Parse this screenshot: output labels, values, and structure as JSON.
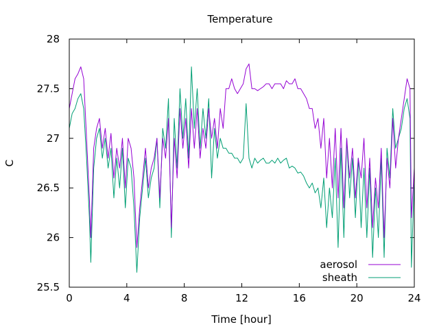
{
  "chart_data": {
    "type": "line",
    "title": "Temperature",
    "xlabel": "Time [hour]",
    "ylabel": "C",
    "xlim": [
      0,
      24
    ],
    "ylim": [
      25.5,
      28
    ],
    "x_ticks": [
      0,
      4,
      8,
      12,
      16,
      20,
      24
    ],
    "y_ticks": [
      25.5,
      26,
      26.5,
      27,
      27.5,
      28
    ],
    "y_tick_labels": [
      "25.5",
      "26",
      "26.5",
      "27",
      "27.5",
      "28"
    ],
    "grid": false,
    "legend_position": "bottom-right",
    "series": [
      {
        "name": "aerosol",
        "color": "#9400d3",
        "x": [
          0,
          0.2,
          0.4,
          0.6,
          0.8,
          1.0,
          1.2,
          1.4,
          1.5,
          1.7,
          1.9,
          2.1,
          2.3,
          2.5,
          2.7,
          2.9,
          3.1,
          3.3,
          3.5,
          3.7,
          3.9,
          4.1,
          4.3,
          4.5,
          4.7,
          4.9,
          5.1,
          5.3,
          5.5,
          5.7,
          5.9,
          6.1,
          6.3,
          6.5,
          6.7,
          6.9,
          7.1,
          7.3,
          7.5,
          7.7,
          7.9,
          8.1,
          8.3,
          8.5,
          8.7,
          8.9,
          9.1,
          9.3,
          9.5,
          9.7,
          9.9,
          10.1,
          10.3,
          10.5,
          10.7,
          10.9,
          11.1,
          11.3,
          11.5,
          11.7,
          11.9,
          12.1,
          12.3,
          12.5,
          12.7,
          12.9,
          13.1,
          13.3,
          13.5,
          13.7,
          13.9,
          14.1,
          14.3,
          14.5,
          14.7,
          14.9,
          15.1,
          15.3,
          15.5,
          15.7,
          15.9,
          16.1,
          16.3,
          16.5,
          16.7,
          16.9,
          17.1,
          17.3,
          17.5,
          17.7,
          17.9,
          18.1,
          18.3,
          18.5,
          18.7,
          18.9,
          19.1,
          19.3,
          19.5,
          19.7,
          19.9,
          20.1,
          20.3,
          20.5,
          20.7,
          20.9,
          21.1,
          21.3,
          21.5,
          21.7,
          21.9,
          22.1,
          22.3,
          22.5,
          22.7,
          22.9,
          23.1,
          23.3,
          23.5,
          23.7,
          23.8,
          24.0
        ],
        "values": [
          27.3,
          27.45,
          27.6,
          27.65,
          27.72,
          27.6,
          27.0,
          26.4,
          26.0,
          26.9,
          27.1,
          27.2,
          26.9,
          27.1,
          26.8,
          27.05,
          26.6,
          26.9,
          26.7,
          27.0,
          26.5,
          27.0,
          26.9,
          26.6,
          25.9,
          26.3,
          26.6,
          26.9,
          26.5,
          26.7,
          26.8,
          27.0,
          26.4,
          27.0,
          26.8,
          27.2,
          26.1,
          27.0,
          26.6,
          27.3,
          26.9,
          27.2,
          26.7,
          27.3,
          26.9,
          27.3,
          26.8,
          27.1,
          26.9,
          27.3,
          27.0,
          27.2,
          26.9,
          27.3,
          27.1,
          27.5,
          27.5,
          27.6,
          27.5,
          27.45,
          27.5,
          27.55,
          27.7,
          27.75,
          27.5,
          27.5,
          27.48,
          27.5,
          27.52,
          27.55,
          27.55,
          27.5,
          27.55,
          27.55,
          27.55,
          27.5,
          27.58,
          27.55,
          27.55,
          27.6,
          27.5,
          27.5,
          27.45,
          27.4,
          27.3,
          27.3,
          27.1,
          27.2,
          26.9,
          27.2,
          26.6,
          27.0,
          26.5,
          27.1,
          26.4,
          27.1,
          26.3,
          27.0,
          26.6,
          26.9,
          26.4,
          26.8,
          26.6,
          27.0,
          26.3,
          26.8,
          26.1,
          26.6,
          26.3,
          26.9,
          26.0,
          26.8,
          26.5,
          27.2,
          26.7,
          27.0,
          27.2,
          27.4,
          27.6,
          27.5,
          26.2,
          26.7
        ]
      },
      {
        "name": "sheath",
        "color": "#009e73",
        "x": [
          0,
          0.2,
          0.4,
          0.6,
          0.8,
          1.0,
          1.2,
          1.4,
          1.5,
          1.7,
          1.9,
          2.1,
          2.3,
          2.5,
          2.7,
          2.9,
          3.1,
          3.3,
          3.5,
          3.7,
          3.9,
          4.1,
          4.3,
          4.5,
          4.7,
          4.9,
          5.1,
          5.3,
          5.5,
          5.7,
          5.9,
          6.1,
          6.3,
          6.5,
          6.7,
          6.9,
          7.1,
          7.3,
          7.5,
          7.7,
          7.9,
          8.1,
          8.3,
          8.5,
          8.7,
          8.9,
          9.1,
          9.3,
          9.5,
          9.7,
          9.9,
          10.1,
          10.3,
          10.5,
          10.7,
          10.9,
          11.1,
          11.3,
          11.5,
          11.7,
          11.9,
          12.1,
          12.3,
          12.5,
          12.7,
          12.9,
          13.1,
          13.3,
          13.5,
          13.7,
          13.9,
          14.1,
          14.3,
          14.5,
          14.7,
          14.9,
          15.1,
          15.3,
          15.5,
          15.7,
          15.9,
          16.1,
          16.3,
          16.5,
          16.7,
          16.9,
          17.1,
          17.3,
          17.5,
          17.7,
          17.9,
          18.1,
          18.3,
          18.5,
          18.7,
          18.9,
          19.1,
          19.3,
          19.5,
          19.7,
          19.9,
          20.1,
          20.3,
          20.5,
          20.7,
          20.9,
          21.1,
          21.3,
          21.5,
          21.7,
          21.9,
          22.1,
          22.3,
          22.5,
          22.7,
          22.9,
          23.1,
          23.3,
          23.5,
          23.7,
          23.8,
          24.0
        ],
        "values": [
          27.1,
          27.25,
          27.3,
          27.4,
          27.45,
          27.3,
          26.8,
          26.2,
          25.75,
          26.7,
          27.0,
          27.1,
          26.8,
          27.0,
          26.7,
          26.9,
          26.4,
          26.8,
          26.5,
          26.9,
          26.3,
          26.8,
          26.7,
          26.3,
          25.65,
          26.2,
          26.5,
          26.8,
          26.4,
          26.6,
          26.7,
          27.0,
          26.3,
          27.1,
          26.9,
          27.4,
          26.0,
          27.2,
          26.7,
          27.5,
          27.0,
          27.4,
          26.8,
          27.72,
          27.1,
          27.5,
          26.9,
          27.3,
          27.0,
          27.4,
          26.6,
          27.1,
          26.8,
          27.0,
          26.9,
          26.9,
          26.85,
          26.85,
          26.8,
          26.8,
          26.75,
          26.8,
          27.35,
          26.8,
          26.7,
          26.8,
          26.75,
          26.78,
          26.8,
          26.75,
          26.75,
          26.78,
          26.75,
          26.8,
          26.75,
          26.78,
          26.8,
          26.7,
          26.72,
          26.7,
          26.65,
          26.66,
          26.62,
          26.55,
          26.5,
          26.55,
          26.45,
          26.5,
          26.3,
          26.6,
          26.1,
          26.5,
          26.2,
          26.8,
          25.9,
          26.9,
          26.0,
          27.0,
          26.4,
          26.8,
          26.2,
          26.8,
          26.1,
          26.7,
          26.0,
          26.7,
          25.8,
          26.5,
          26.0,
          26.8,
          25.8,
          26.9,
          26.6,
          27.3,
          26.9,
          27.0,
          27.1,
          27.3,
          27.4,
          27.2,
          25.7,
          26.6
        ]
      }
    ]
  }
}
